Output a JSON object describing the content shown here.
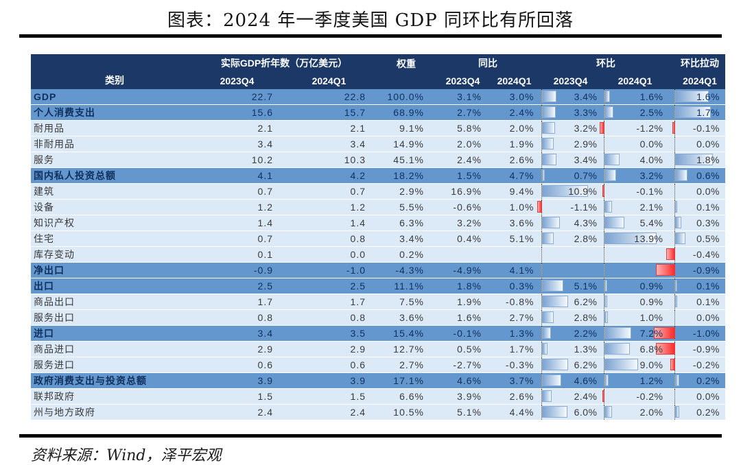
{
  "title": "图表：2024 年一季度美国 GDP 同环比有所回落",
  "source": "资料来源：Wind，泽平宏观",
  "colors": {
    "header_bg": "#1b3866",
    "highlight_row_bg": "#6397cd",
    "light_row_bg": "#dce9f6",
    "bar_positive": "#7ca3d1",
    "bar_negative": "#ff2a2a",
    "header_text": "#ffffff"
  },
  "table": {
    "group_headers": {
      "category": "类别",
      "gdp": "实际GDP折年数（万亿美元）",
      "weight": "权重",
      "yoy": "同比",
      "qoq": "环比",
      "pull": "环比拉动"
    },
    "sub_headers": {
      "gdp23": "2023Q4",
      "gdp24": "2024Q1",
      "yoy23": "2023Q4",
      "yoy24": "2024Q1",
      "qoq23": "2023Q4",
      "qoq24": "2024Q1",
      "pull24": "2024Q1"
    },
    "bar_scales": {
      "qoq23": 10.9,
      "qoq24": 13.9,
      "pull": 1.8
    },
    "bar_fill_ratio": 75,
    "rows": [
      {
        "label": "GDP",
        "hl": true,
        "gdp23": "22.7",
        "gdp24": "22.8",
        "weight": "100.0%",
        "yoy23": "3.1%",
        "yoy24": "3.0%",
        "qoq23": "3.4%",
        "qoq24": "1.6%",
        "pull": "1.6%"
      },
      {
        "label": "个人消费支出",
        "hl": true,
        "gdp23": "15.6",
        "gdp24": "15.7",
        "weight": "68.9%",
        "yoy23": "2.7%",
        "yoy24": "2.4%",
        "qoq23": "3.3%",
        "qoq24": "2.5%",
        "pull": "1.7%"
      },
      {
        "label": "耐用品",
        "hl": false,
        "gdp23": "2.1",
        "gdp24": "2.1",
        "weight": "9.1%",
        "yoy23": "5.8%",
        "yoy24": "2.0%",
        "qoq23": "3.2%",
        "qoq24": "-1.2%",
        "pull": "-0.1%"
      },
      {
        "label": "非耐用品",
        "hl": false,
        "gdp23": "3.4",
        "gdp24": "3.4",
        "weight": "14.9%",
        "yoy23": "2.0%",
        "yoy24": "1.9%",
        "qoq23": "2.9%",
        "qoq24": "0.0%",
        "pull": "0.0%"
      },
      {
        "label": "服务",
        "hl": false,
        "gdp23": "10.2",
        "gdp24": "10.3",
        "weight": "45.1%",
        "yoy23": "2.4%",
        "yoy24": "2.6%",
        "qoq23": "3.4%",
        "qoq24": "4.0%",
        "pull": "1.8%"
      },
      {
        "label": "国内私人投资总额",
        "hl": true,
        "gdp23": "4.1",
        "gdp24": "4.2",
        "weight": "18.2%",
        "yoy23": "1.5%",
        "yoy24": "4.7%",
        "qoq23": "0.7%",
        "qoq24": "3.2%",
        "pull": "0.6%"
      },
      {
        "label": "建筑",
        "hl": false,
        "gdp23": "0.7",
        "gdp24": "0.7",
        "weight": "2.9%",
        "yoy23": "16.9%",
        "yoy24": "9.4%",
        "qoq23": "10.9%",
        "qoq24": "-0.1%",
        "pull": "0.0%"
      },
      {
        "label": "设备",
        "hl": false,
        "gdp23": "1.2",
        "gdp24": "1.2",
        "weight": "5.5%",
        "yoy23": "-0.6%",
        "yoy24": "1.0%",
        "qoq23": "-1.1%",
        "qoq24": "2.1%",
        "pull": "0.1%"
      },
      {
        "label": "知识产权",
        "hl": false,
        "gdp23": "1.4",
        "gdp24": "1.4",
        "weight": "6.3%",
        "yoy23": "3.2%",
        "yoy24": "3.6%",
        "qoq23": "4.3%",
        "qoq24": "5.4%",
        "pull": "0.3%"
      },
      {
        "label": "住宅",
        "hl": false,
        "gdp23": "0.7",
        "gdp24": "0.8",
        "weight": "3.4%",
        "yoy23": "0.4%",
        "yoy24": "5.1%",
        "qoq23": "2.8%",
        "qoq24": "13.9%",
        "pull": "0.5%"
      },
      {
        "label": "库存变动",
        "hl": false,
        "gdp23": "0.1",
        "gdp24": "0.0",
        "weight": "0.2%",
        "yoy23": "",
        "yoy24": "",
        "qoq23": "",
        "qoq24": "",
        "pull": "-0.4%"
      },
      {
        "label": "净出口",
        "hl": true,
        "gdp23": "-0.9",
        "gdp24": "-1.0",
        "weight": "-4.3%",
        "yoy23": "-4.9%",
        "yoy24": "4.1%",
        "qoq23": "",
        "qoq24": "",
        "pull": "-0.9%"
      },
      {
        "label": "出口",
        "hl": true,
        "gdp23": "2.5",
        "gdp24": "2.5",
        "weight": "11.1%",
        "yoy23": "1.8%",
        "yoy24": "0.3%",
        "qoq23": "5.1%",
        "qoq24": "0.9%",
        "pull": "0.1%"
      },
      {
        "label": "商品出口",
        "hl": false,
        "gdp23": "1.7",
        "gdp24": "1.7",
        "weight": "7.5%",
        "yoy23": "1.9%",
        "yoy24": "-0.8%",
        "qoq23": "6.2%",
        "qoq24": "0.9%",
        "pull": "0.1%"
      },
      {
        "label": "服务出口",
        "hl": false,
        "gdp23": "0.8",
        "gdp24": "0.8",
        "weight": "3.6%",
        "yoy23": "1.6%",
        "yoy24": "2.7%",
        "qoq23": "2.8%",
        "qoq24": "1.0%",
        "pull": "0.0%"
      },
      {
        "label": "进口",
        "hl": true,
        "gdp23": "3.4",
        "gdp24": "3.5",
        "weight": "15.4%",
        "yoy23": "-0.1%",
        "yoy24": "1.3%",
        "qoq23": "2.2%",
        "qoq24": "7.2%",
        "pull": "-1.0%"
      },
      {
        "label": "商品进口",
        "hl": false,
        "gdp23": "2.9",
        "gdp24": "2.9",
        "weight": "12.7%",
        "yoy23": "0.5%",
        "yoy24": "1.7%",
        "qoq23": "1.3%",
        "qoq24": "6.8%",
        "pull": "-0.9%"
      },
      {
        "label": "服务进口",
        "hl": false,
        "gdp23": "0.6",
        "gdp24": "0.6",
        "weight": "2.7%",
        "yoy23": "-2.7%",
        "yoy24": "-0.3%",
        "qoq23": "6.2%",
        "qoq24": "9.0%",
        "pull": "-0.2%"
      },
      {
        "label": "政府消费支出与投资总额",
        "hl": true,
        "gdp23": "3.9",
        "gdp24": "3.9",
        "weight": "17.1%",
        "yoy23": "4.6%",
        "yoy24": "3.7%",
        "qoq23": "4.6%",
        "qoq24": "1.2%",
        "pull": "0.2%"
      },
      {
        "label": "联邦政府",
        "hl": false,
        "gdp23": "1.5",
        "gdp24": "1.5",
        "weight": "6.6%",
        "yoy23": "3.9%",
        "yoy24": "2.6%",
        "qoq23": "2.4%",
        "qoq24": "-0.2%",
        "pull": "0.0%"
      },
      {
        "label": "州与地方政府",
        "hl": false,
        "gdp23": "2.4",
        "gdp24": "2.4",
        "weight": "10.5%",
        "yoy23": "5.1%",
        "yoy24": "4.4%",
        "qoq23": "6.0%",
        "qoq24": "2.0%",
        "pull": "0.2%"
      }
    ]
  }
}
